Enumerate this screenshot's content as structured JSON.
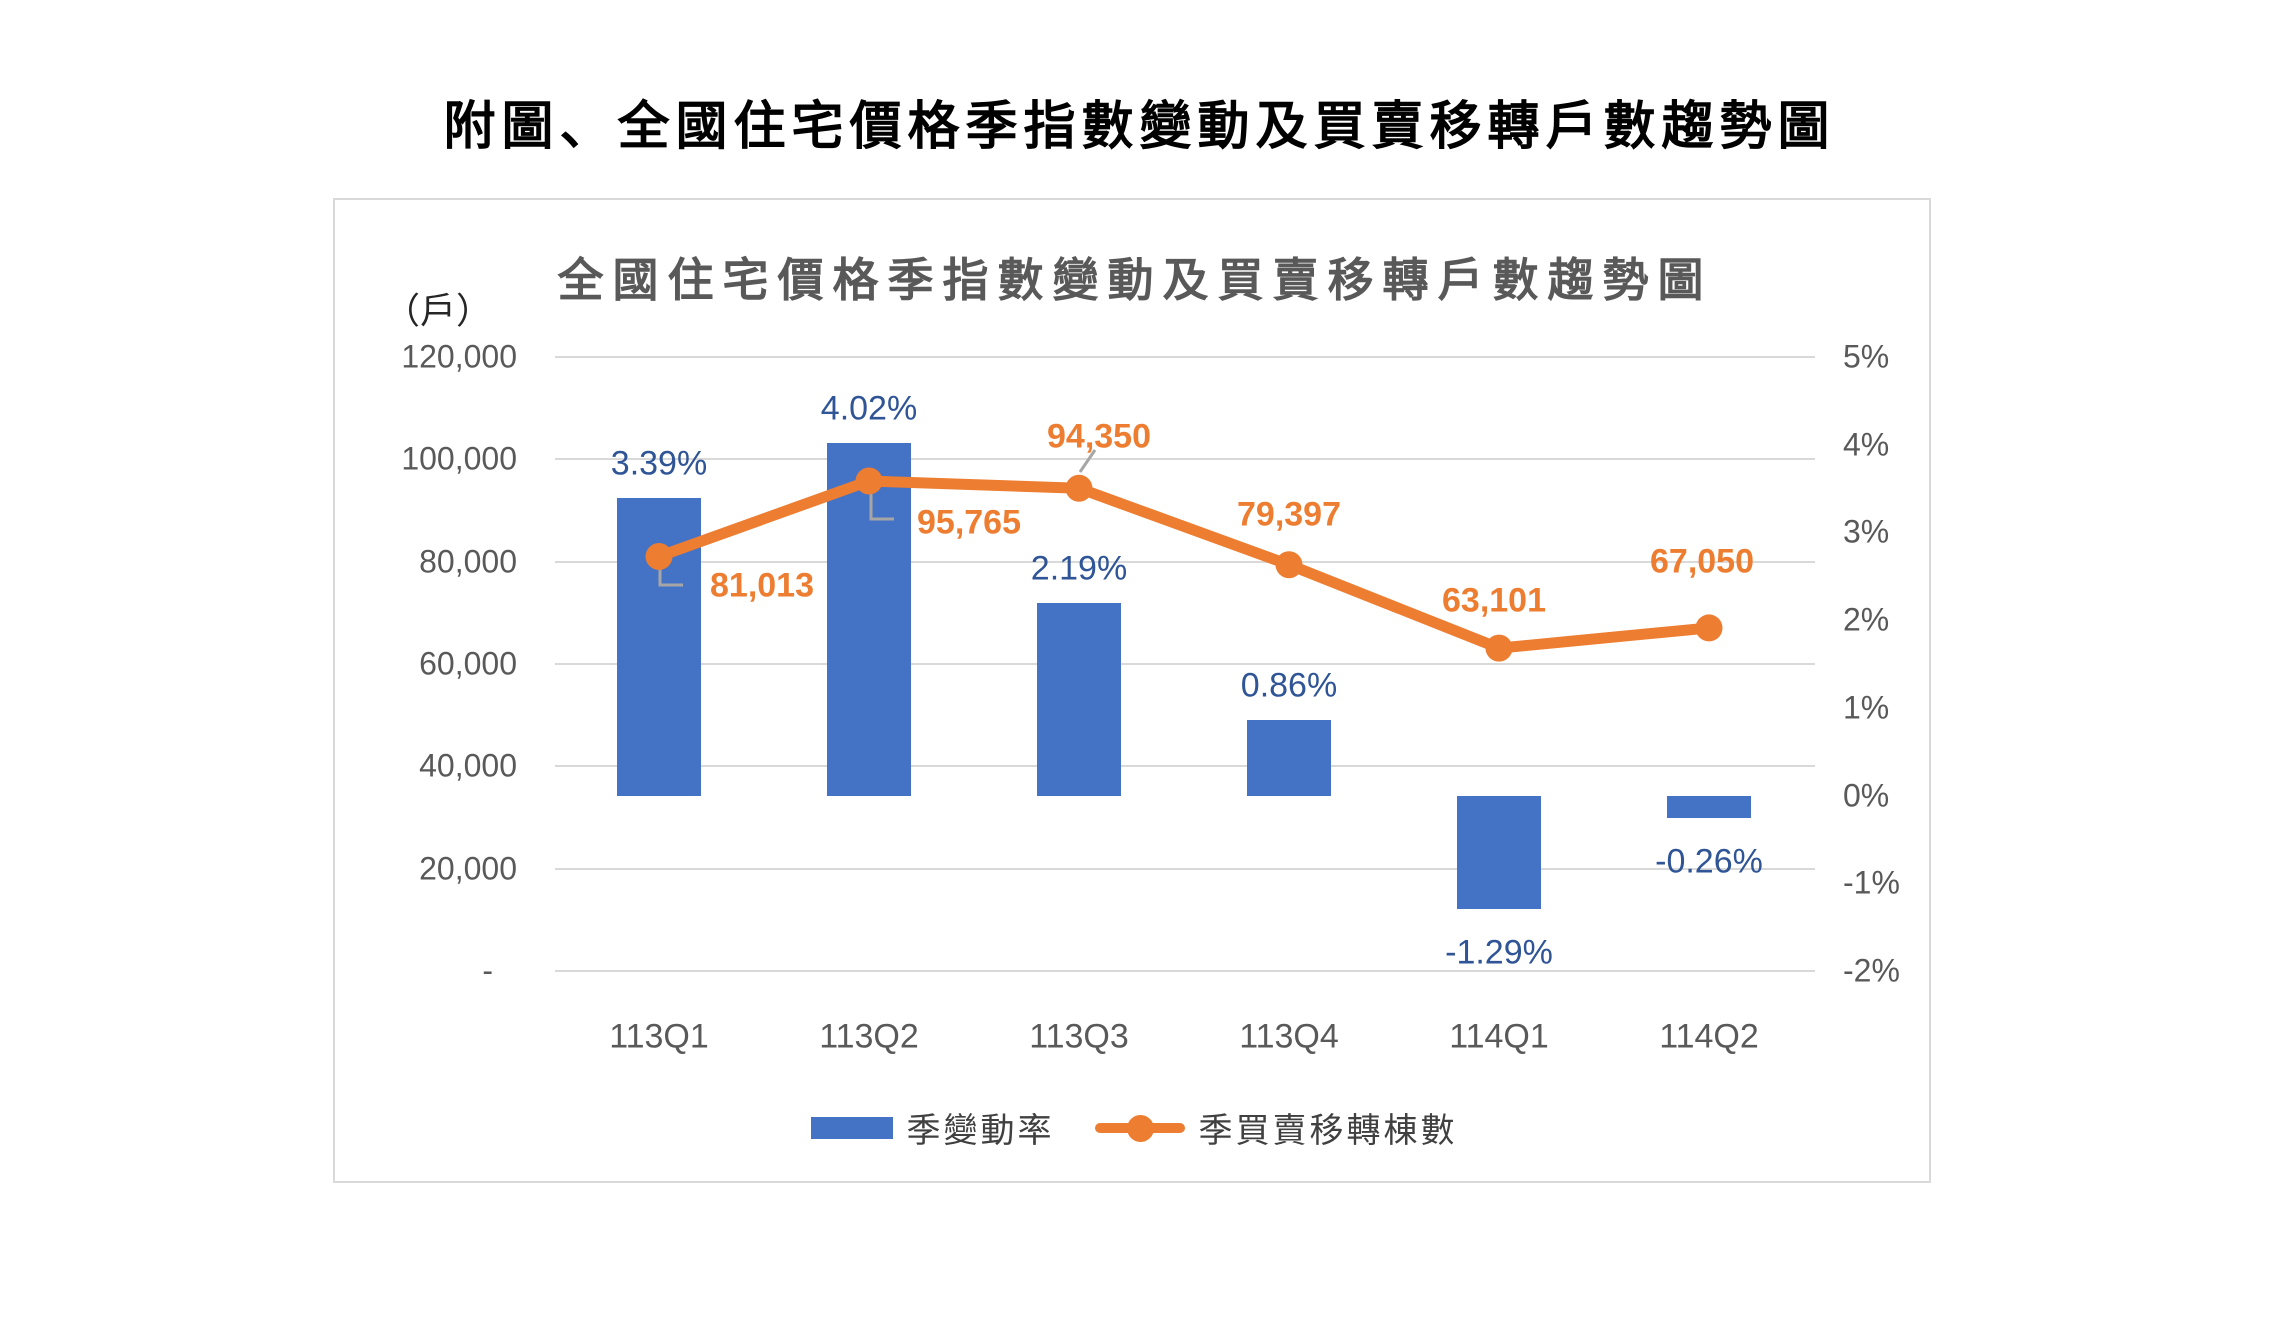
{
  "page": {
    "title": "附圖、全國住宅價格季指數變動及買賣移轉戶數趨勢圖"
  },
  "chart": {
    "title": "全國住宅價格季指數變動及買賣移轉戶數趨勢圖",
    "unit_label": "（戶）",
    "colors": {
      "bar": "#4472C4",
      "line": "#ED7D31",
      "bar_label": "#2F5597",
      "line_label": "#ED7D31",
      "axis_text": "#595959",
      "gridline": "#D9D9D9",
      "leader": "#A6A6A6"
    },
    "legend": {
      "bar_label": "季變動率",
      "line_label": "季買賣移轉棟數"
    }
  },
  "chart_data": {
    "type": "combo-bar-line",
    "title": "全國住宅價格季指數變動及買賣移轉戶數趨勢圖",
    "categories": [
      "113Q1",
      "113Q2",
      "113Q3",
      "113Q4",
      "114Q1",
      "114Q2"
    ],
    "series": [
      {
        "name": "季變動率",
        "type": "bar",
        "axis": "right",
        "unit": "%",
        "values": [
          3.39,
          4.02,
          2.19,
          0.86,
          -1.29,
          -0.26
        ],
        "labels": [
          "3.39%",
          "4.02%",
          "2.19%",
          "0.86%",
          "-1.29%",
          "-0.26%"
        ],
        "color": "#4472C4"
      },
      {
        "name": "季買賣移轉棟數",
        "type": "line",
        "axis": "left",
        "unit": "戶",
        "values": [
          81013,
          95765,
          94350,
          79397,
          63101,
          67050
        ],
        "labels": [
          "81,013",
          "95,765",
          "94,350",
          "79,397",
          "63,101",
          "67,050"
        ],
        "color": "#ED7D31"
      }
    ],
    "left_axis": {
      "title": "（戶）",
      "min": 0,
      "max": 120000,
      "tick_labels": [
        "120,000",
        "100,000",
        "80,000",
        "60,000",
        "40,000",
        "20,000",
        "-"
      ]
    },
    "right_axis": {
      "min": -2,
      "max": 5,
      "tick_labels": [
        "5%",
        "4%",
        "3%",
        "2%",
        "1%",
        "0%",
        "-1%",
        "-2%"
      ]
    },
    "grid": true,
    "legend_position": "bottom"
  }
}
